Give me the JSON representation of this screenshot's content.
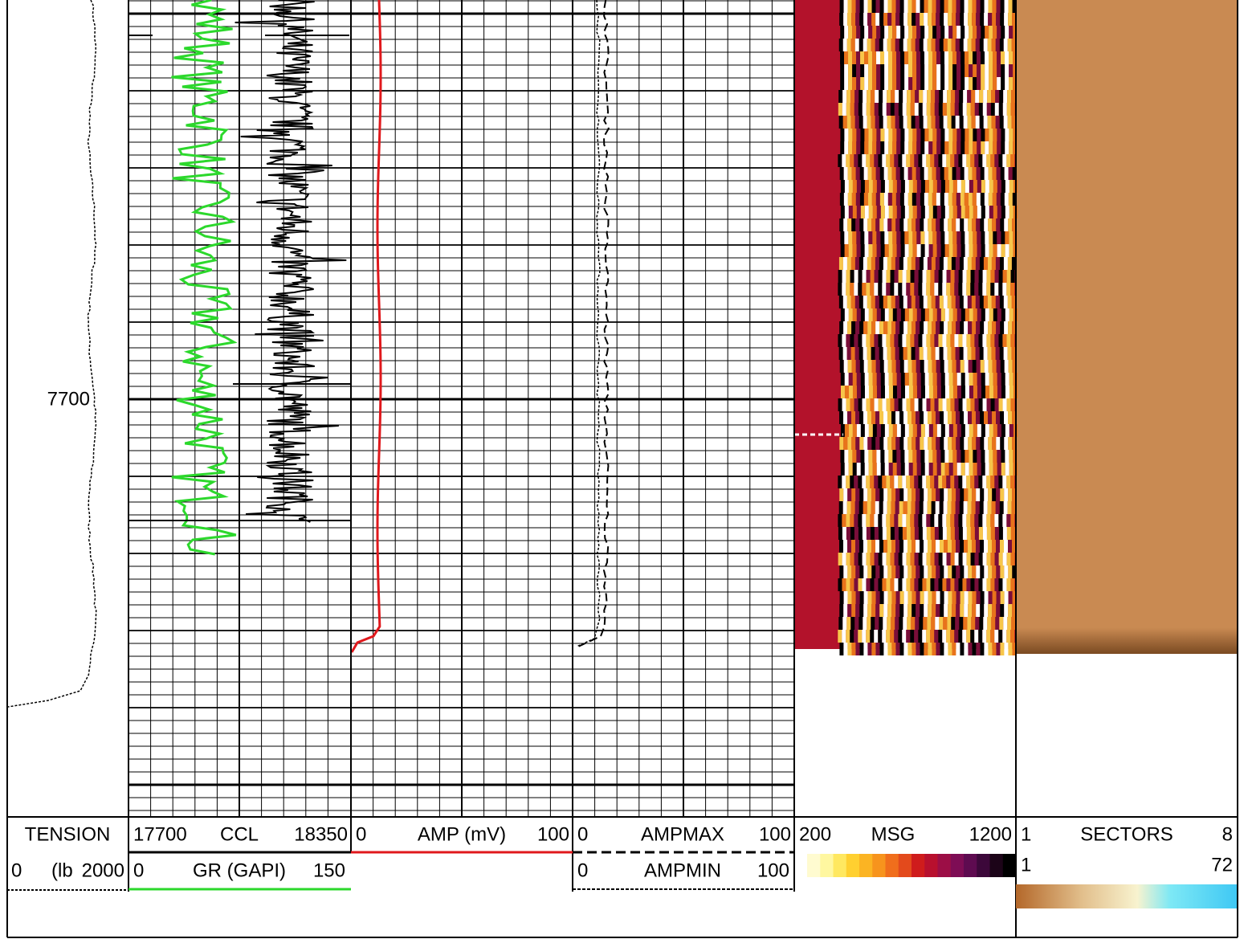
{
  "depth_track": {
    "depth_label": "7700",
    "header": "TENSION",
    "scale_left": "0",
    "unit": "(lb",
    "scale_right": "2000"
  },
  "track1": {
    "curve1": {
      "left": "17700",
      "name": "CCL",
      "right": "18350"
    },
    "curve2": {
      "left": "0",
      "name": "GR (GAPI)",
      "right": "150"
    }
  },
  "track2": {
    "curve1": {
      "left": "0",
      "name": "AMP (mV)",
      "right": "100"
    }
  },
  "track3": {
    "curve1": {
      "left": "0",
      "name": "AMPMAX",
      "right": "100"
    },
    "curve2": {
      "left": "0",
      "name": "AMPMIN",
      "right": "100"
    }
  },
  "image_track": {
    "left": "200",
    "name": "MSG",
    "right": "1200"
  },
  "sectors_track": {
    "left": "1",
    "name": "SECTORS",
    "right": "8",
    "left2": "1",
    "right2": "72"
  }
}
